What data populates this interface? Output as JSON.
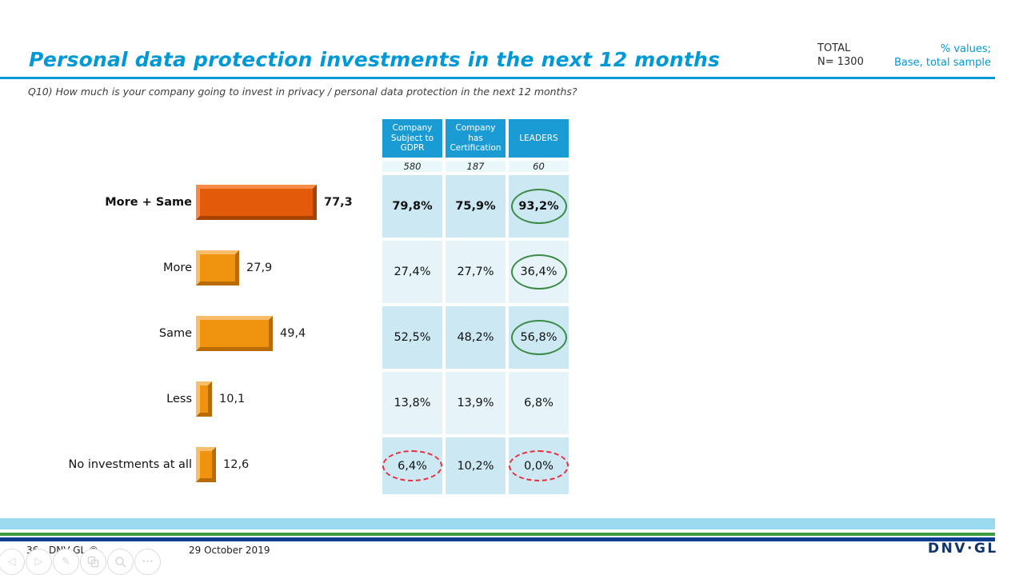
{
  "header": {
    "title": "Personal data protection investments in the next 12 months",
    "total_label": "TOTAL",
    "total_n": "N= 1300",
    "note_line1": "% values;",
    "note_line2": "Base, total sample",
    "accent_color": "#0099d6"
  },
  "question": "Q10) How much is your company going to invest in privacy / personal data protection in the next 12 months?",
  "chart_data": [
    {
      "type": "bar",
      "orientation": "horizontal",
      "title": "",
      "categories": [
        "More + Same",
        "More",
        "Same",
        "Less",
        "No investments at all"
      ],
      "values": [
        77.3,
        27.9,
        49.4,
        10.1,
        12.6
      ],
      "value_labels": [
        "77,3",
        "27,9",
        "49,4",
        "10,1",
        "12,6"
      ],
      "emphasis": [
        true,
        false,
        false,
        false,
        false
      ],
      "xlim": [
        0,
        100
      ],
      "grid": false,
      "bar_style_emphasis": {
        "fill": "#e45a0b",
        "light": "#f58b45",
        "dark": "#a84201"
      },
      "bar_style_normal": {
        "fill": "#f0930e",
        "light": "#f8be6b",
        "dark": "#ba6c04"
      }
    },
    {
      "type": "table",
      "columns": [
        {
          "label": "Company Subject to GDPR",
          "base": "580"
        },
        {
          "label": "Company has Certification",
          "base": "187"
        },
        {
          "label": "LEADERS",
          "base": "60"
        }
      ],
      "rows": [
        {
          "category": "More + Same",
          "bold": true,
          "cells": [
            {
              "value": "79,8%"
            },
            {
              "value": "75,9%"
            },
            {
              "value": "93,2%",
              "highlight": "green"
            }
          ]
        },
        {
          "category": "More",
          "bold": false,
          "cells": [
            {
              "value": "27,4%"
            },
            {
              "value": "27,7%"
            },
            {
              "value": "36,4%",
              "highlight": "green"
            }
          ]
        },
        {
          "category": "Same",
          "bold": false,
          "cells": [
            {
              "value": "52,5%"
            },
            {
              "value": "48,2%"
            },
            {
              "value": "56,8%",
              "highlight": "green"
            }
          ]
        },
        {
          "category": "Less",
          "bold": false,
          "cells": [
            {
              "value": "13,8%"
            },
            {
              "value": "13,9%"
            },
            {
              "value": "6,8%"
            }
          ]
        },
        {
          "category": "No investments at all",
          "bold": false,
          "cells": [
            {
              "value": "6,4%",
              "highlight": "red"
            },
            {
              "value": "10,2%"
            },
            {
              "value": "0,0%",
              "highlight": "red"
            }
          ]
        }
      ],
      "highlight_colors": {
        "green": "#3d8b46",
        "red": "#ee2b3c"
      }
    }
  ],
  "footer": {
    "page_number": "36",
    "copyright": "DNV GL ©",
    "date": "29 October 2019",
    "logo_text": "DNV·GL",
    "stripe_colors": {
      "lightblue": "#9bd9ef",
      "green": "#3f9b41",
      "navy": "#0b3d91"
    },
    "nav_icons": [
      {
        "name": "previous-slide-icon",
        "glyph": "◁"
      },
      {
        "name": "next-slide-icon",
        "glyph": "▷"
      },
      {
        "name": "pen-icon",
        "glyph": "✎"
      },
      {
        "name": "slide-sorter-icon",
        "glyph": "svg:slides"
      },
      {
        "name": "zoom-icon",
        "glyph": "svg:zoom"
      },
      {
        "name": "more-options-icon",
        "glyph": "•••"
      }
    ]
  }
}
